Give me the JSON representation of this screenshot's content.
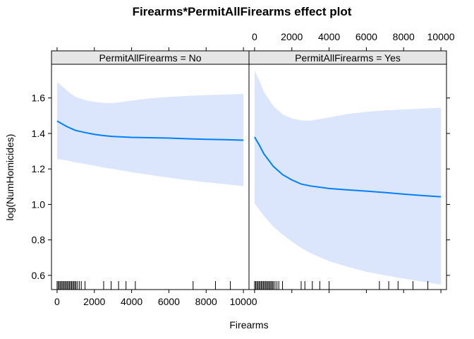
{
  "chart_data": {
    "type": "line",
    "title": "Firearms*PermitAllFirearms effect plot",
    "xlabel": "Firearms",
    "ylabel": "log(NumHomicides)",
    "xlim": [
      -300,
      10300
    ],
    "ylim": [
      0.52,
      1.79
    ],
    "x_ticks": [
      0,
      2000,
      4000,
      6000,
      8000,
      10000
    ],
    "x_tick_labels": [
      "0",
      "2000",
      "4000",
      "6000",
      "8000",
      "10000"
    ],
    "y_ticks": [
      0.6,
      0.8,
      1.0,
      1.2,
      1.4,
      1.6
    ],
    "y_tick_labels": [
      "0.6",
      "0.8",
      "1.0",
      "1.2",
      "1.4",
      "1.6"
    ],
    "line_color": "#0080ff",
    "band_color": "#dbe6fc",
    "grid": false,
    "panels": [
      {
        "strip_label": "PermitAllFirearms = No",
        "x": [
          0,
          250,
          500,
          750,
          1000,
          1500,
          2000,
          2500,
          3000,
          4000,
          5000,
          6000,
          7000,
          8000,
          9000,
          10000
        ],
        "fit": [
          1.47,
          1.455,
          1.44,
          1.428,
          1.417,
          1.405,
          1.395,
          1.388,
          1.383,
          1.378,
          1.376,
          1.374,
          1.37,
          1.367,
          1.365,
          1.362
        ],
        "lower": [
          1.255,
          1.252,
          1.248,
          1.243,
          1.237,
          1.228,
          1.218,
          1.208,
          1.2,
          1.182,
          1.166,
          1.151,
          1.137,
          1.125,
          1.114,
          1.103
        ],
        "upper": [
          1.69,
          1.668,
          1.644,
          1.623,
          1.606,
          1.588,
          1.578,
          1.572,
          1.571,
          1.585,
          1.598,
          1.606,
          1.612,
          1.616,
          1.62,
          1.623
        ],
        "rug": [
          0,
          60,
          120,
          180,
          240,
          300,
          360,
          420,
          480,
          540,
          600,
          660,
          720,
          780,
          840,
          900,
          960,
          1020,
          1100,
          1200,
          1300,
          1500,
          2500,
          2900,
          3300,
          3700,
          4200,
          7300,
          8500,
          9300
        ]
      },
      {
        "strip_label": "PermitAllFirearms = Yes",
        "x": [
          0,
          250,
          500,
          750,
          1000,
          1500,
          2000,
          2500,
          3000,
          4000,
          5000,
          6000,
          7000,
          8000,
          9000,
          10000
        ],
        "fit": [
          1.38,
          1.335,
          1.285,
          1.25,
          1.215,
          1.168,
          1.138,
          1.115,
          1.104,
          1.09,
          1.082,
          1.075,
          1.067,
          1.058,
          1.05,
          1.043
        ],
        "lower": [
          1.005,
          0.97,
          0.935,
          0.905,
          0.875,
          0.83,
          0.79,
          0.755,
          0.725,
          0.68,
          0.648,
          0.62,
          0.6,
          0.582,
          0.565,
          0.548
        ],
        "upper": [
          1.755,
          1.7,
          1.635,
          1.595,
          1.555,
          1.508,
          1.485,
          1.474,
          1.472,
          1.49,
          1.51,
          1.522,
          1.53,
          1.535,
          1.54,
          1.545
        ],
        "rug": [
          0,
          60,
          120,
          180,
          240,
          300,
          360,
          420,
          480,
          540,
          600,
          660,
          720,
          780,
          840,
          900,
          960,
          1020,
          1100,
          1200,
          1300,
          1500,
          2500,
          2700,
          3100,
          3500,
          4000,
          6700,
          7200,
          7700,
          8500,
          9300
        ]
      }
    ]
  }
}
